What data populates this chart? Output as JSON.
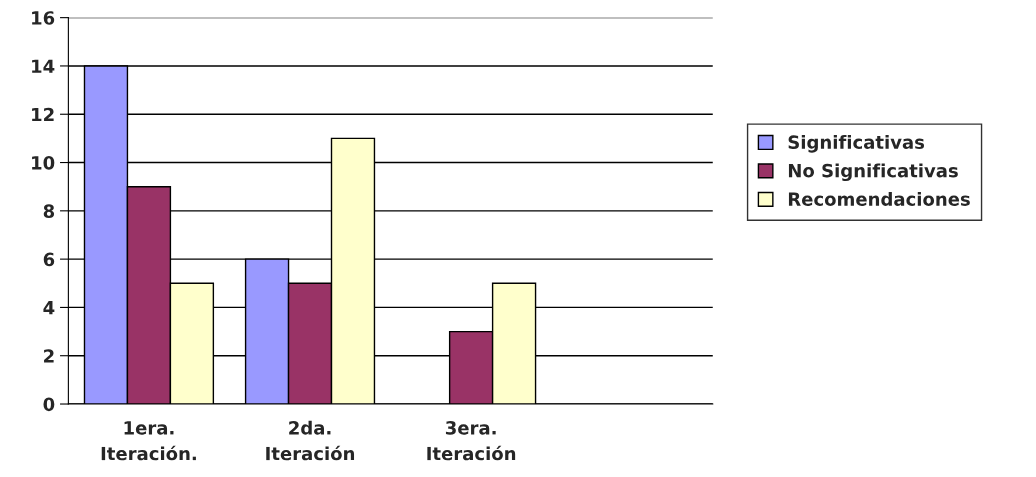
{
  "chart_data": {
    "type": "bar",
    "categories": [
      "1era.\nIteración.",
      "2da.\nIteración",
      "3era.\nIteración",
      null
    ],
    "series": [
      {
        "name": "Significativas",
        "color": "#9999ff",
        "values": [
          14,
          6,
          null,
          null
        ]
      },
      {
        "name": "No Significativas",
        "color": "#993366",
        "values": [
          9,
          5,
          3,
          null
        ]
      },
      {
        "name": "Recomendaciones",
        "color": "#ffffcc",
        "values": [
          5,
          11,
          5,
          null
        ]
      }
    ],
    "ylim": [
      0,
      16
    ],
    "yticks": [
      0,
      2,
      4,
      6,
      8,
      10,
      12,
      14,
      16
    ],
    "grid": "y",
    "legend": "right"
  }
}
